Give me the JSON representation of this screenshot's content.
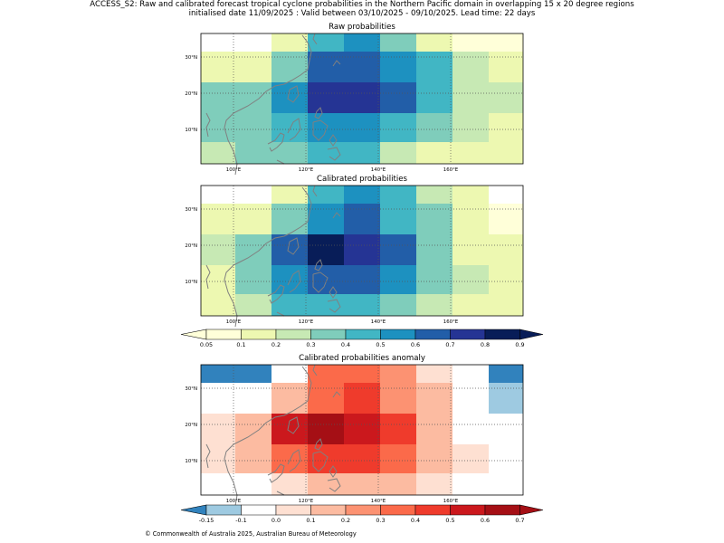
{
  "title": {
    "line1": "ACCESS_S2: Raw and calibrated forecast tropical cyclone probabilities in the Northern Pacific domain in overlapping 15 x 20 degree regions",
    "line2": "initialised date 11/09/2025 :  Valid between 03/10/2025 - 09/10/2025. Lead time: 22 days"
  },
  "footer": "© Commonwealth of Australia 2025, Australian Bureau of Meteorology",
  "colors": {
    "prob_bins": [
      "#ffffd9",
      "#edf8b1",
      "#c7e9b4",
      "#7fcdbb",
      "#41b6c4",
      "#1d91c0",
      "#225ea8",
      "#253494",
      "#081d58"
    ],
    "anom_bins": [
      "#3182bd",
      "#9ecae1",
      "#ffffff",
      "#fee0d2",
      "#fcbba1",
      "#fc9272",
      "#fb6a4a",
      "#ef3b2c",
      "#cb181d",
      "#a50f15"
    ],
    "coast": "#808080"
  },
  "map": {
    "lon_ticks": [
      "100°E",
      "120°E",
      "140°E",
      "160°E"
    ],
    "lat_ticks": [
      "30°N",
      "20°N",
      "10°N"
    ]
  },
  "panels": [
    {
      "title": "Raw probabilities",
      "bins": [
        [
          null,
          null,
          1,
          4,
          5,
          3,
          1,
          0,
          0
        ],
        [
          1,
          1,
          3,
          6,
          6,
          5,
          4,
          2,
          1
        ],
        [
          3,
          3,
          5,
          7,
          7,
          6,
          4,
          2,
          2
        ],
        [
          3,
          3,
          4,
          5,
          5,
          4,
          3,
          2,
          1
        ],
        [
          2,
          3,
          3,
          4,
          4,
          2,
          1,
          1,
          1
        ]
      ]
    },
    {
      "title": "Calibrated probabilities",
      "bins": [
        [
          null,
          null,
          1,
          4,
          5,
          4,
          2,
          1,
          null
        ],
        [
          1,
          1,
          3,
          5,
          6,
          4,
          3,
          1,
          0
        ],
        [
          2,
          3,
          6,
          8,
          7,
          6,
          3,
          1,
          1
        ],
        [
          1,
          3,
          5,
          6,
          6,
          5,
          3,
          2,
          1
        ],
        [
          1,
          2,
          4,
          4,
          4,
          3,
          2,
          1,
          1
        ]
      ]
    },
    {
      "title": "Calibrated probabilities anomaly",
      "bins": [
        [
          0,
          0,
          null,
          6,
          6,
          5,
          3,
          null,
          0
        ],
        [
          2,
          2,
          4,
          6,
          7,
          5,
          4,
          2,
          1
        ],
        [
          3,
          4,
          8,
          9,
          8,
          7,
          4,
          2,
          2
        ],
        [
          3,
          4,
          6,
          7,
          7,
          6,
          4,
          3,
          2
        ],
        [
          2,
          2,
          3,
          4,
          4,
          4,
          3,
          2,
          2
        ]
      ]
    }
  ],
  "colorbars": [
    {
      "labels": [
        "0.05",
        "0.1",
        "0.2",
        "0.3",
        "0.4",
        "0.5",
        "0.6",
        "0.7",
        "0.8",
        "0.9"
      ]
    },
    {
      "labels": [
        "-0.15",
        "-0.1",
        "0.0",
        "0.1",
        "0.2",
        "0.3",
        "0.4",
        "0.5",
        "0.6",
        "0.7"
      ]
    }
  ]
}
